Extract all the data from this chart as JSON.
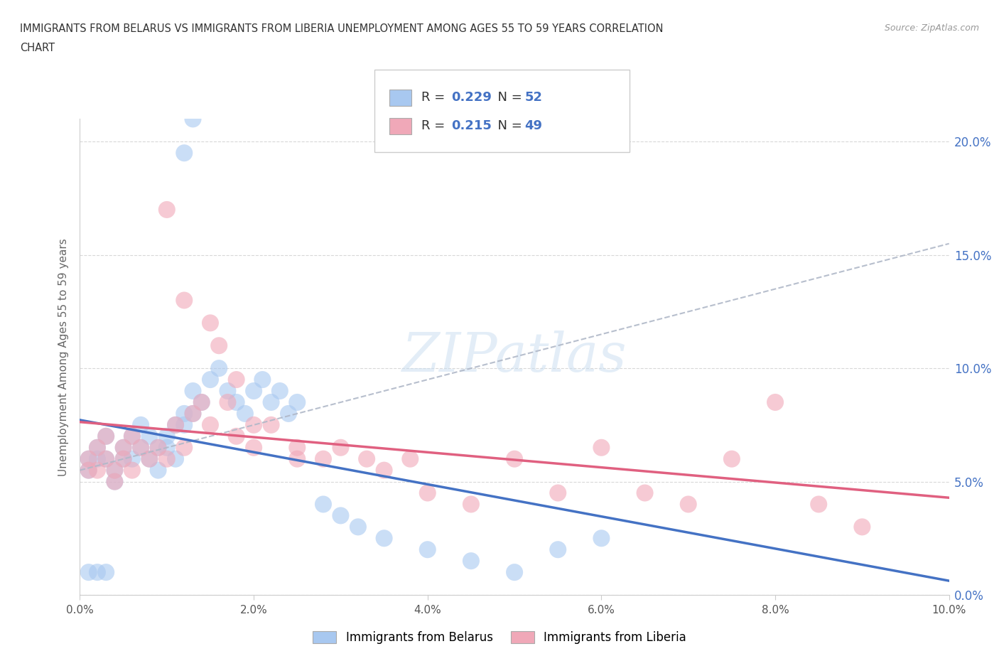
{
  "title_line1": "IMMIGRANTS FROM BELARUS VS IMMIGRANTS FROM LIBERIA UNEMPLOYMENT AMONG AGES 55 TO 59 YEARS CORRELATION",
  "title_line2": "CHART",
  "source": "Source: ZipAtlas.com",
  "ylabel": "Unemployment Among Ages 55 to 59 years",
  "watermark": "ZIPatlas",
  "xlim": [
    0.0,
    0.1
  ],
  "ylim": [
    0.0,
    0.21
  ],
  "x_ticks": [
    0.0,
    0.02,
    0.04,
    0.06,
    0.08,
    0.1
  ],
  "x_tick_labels": [
    "0.0%",
    "2.0%",
    "4.0%",
    "6.0%",
    "8.0%",
    "10.0%"
  ],
  "y_ticks": [
    0.0,
    0.05,
    0.1,
    0.15,
    0.2
  ],
  "y_tick_labels": [
    "0.0%",
    "5.0%",
    "10.0%",
    "15.0%",
    "20.0%"
  ],
  "belarus_color": "#a8c8f0",
  "liberia_color": "#f0a8b8",
  "belarus_line_color": "#4472c4",
  "liberia_line_color": "#e06080",
  "trend_line_color": "#b0b8c8",
  "belarus_R": 0.229,
  "belarus_N": 52,
  "liberia_R": 0.215,
  "liberia_N": 49,
  "legend_label_1": "Immigrants from Belarus",
  "legend_label_2": "Immigrants from Liberia",
  "belarus_x": [
    0.001,
    0.001,
    0.002,
    0.002,
    0.003,
    0.003,
    0.004,
    0.004,
    0.005,
    0.005,
    0.006,
    0.006,
    0.007,
    0.007,
    0.008,
    0.008,
    0.009,
    0.009,
    0.01,
    0.01,
    0.011,
    0.011,
    0.012,
    0.012,
    0.013,
    0.013,
    0.014,
    0.015,
    0.016,
    0.017,
    0.018,
    0.019,
    0.02,
    0.021,
    0.022,
    0.023,
    0.024,
    0.025,
    0.028,
    0.03,
    0.032,
    0.035,
    0.04,
    0.045,
    0.05,
    0.055,
    0.06,
    0.012,
    0.013,
    0.001,
    0.002,
    0.003
  ],
  "belarus_y": [
    0.06,
    0.055,
    0.065,
    0.06,
    0.07,
    0.06,
    0.055,
    0.05,
    0.065,
    0.06,
    0.07,
    0.06,
    0.075,
    0.065,
    0.07,
    0.06,
    0.065,
    0.055,
    0.07,
    0.065,
    0.075,
    0.06,
    0.08,
    0.075,
    0.09,
    0.08,
    0.085,
    0.095,
    0.1,
    0.09,
    0.085,
    0.08,
    0.09,
    0.095,
    0.085,
    0.09,
    0.08,
    0.085,
    0.04,
    0.035,
    0.03,
    0.025,
    0.02,
    0.015,
    0.01,
    0.02,
    0.025,
    0.195,
    0.21,
    0.01,
    0.01,
    0.01
  ],
  "liberia_x": [
    0.001,
    0.001,
    0.002,
    0.002,
    0.003,
    0.003,
    0.004,
    0.004,
    0.005,
    0.005,
    0.006,
    0.006,
    0.007,
    0.008,
    0.009,
    0.01,
    0.011,
    0.012,
    0.013,
    0.014,
    0.015,
    0.016,
    0.017,
    0.018,
    0.02,
    0.022,
    0.025,
    0.028,
    0.03,
    0.033,
    0.035,
    0.038,
    0.04,
    0.045,
    0.05,
    0.055,
    0.06,
    0.065,
    0.07,
    0.075,
    0.08,
    0.085,
    0.09,
    0.01,
    0.012,
    0.015,
    0.018,
    0.02,
    0.025
  ],
  "liberia_y": [
    0.06,
    0.055,
    0.065,
    0.055,
    0.07,
    0.06,
    0.055,
    0.05,
    0.065,
    0.06,
    0.07,
    0.055,
    0.065,
    0.06,
    0.065,
    0.06,
    0.075,
    0.065,
    0.08,
    0.085,
    0.12,
    0.11,
    0.085,
    0.095,
    0.075,
    0.075,
    0.065,
    0.06,
    0.065,
    0.06,
    0.055,
    0.06,
    0.045,
    0.04,
    0.06,
    0.045,
    0.065,
    0.045,
    0.04,
    0.06,
    0.085,
    0.04,
    0.03,
    0.17,
    0.13,
    0.075,
    0.07,
    0.065,
    0.06
  ],
  "background_color": "#ffffff",
  "grid_color": "#d8d8d8"
}
